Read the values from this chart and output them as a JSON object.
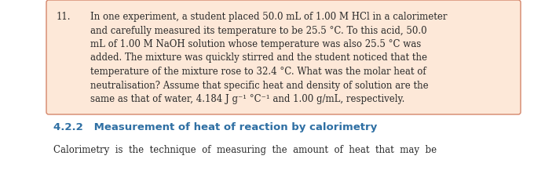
{
  "bg_color": "#ffffff",
  "box_bg_color": "#fde8d8",
  "box_border_color": "#d4856a",
  "heading_color": "#2e6fa3",
  "body_color": "#2a2a2a",
  "number_color": "#2a2a2a",
  "item_number": "11.",
  "lines": [
    "In one experiment, a student placed 50.0 mL of 1.00 M HCl in a calorimeter",
    "and carefully measured its temperature to be 25.5 °C. To this acid, 50.0",
    "mL of 1.00 M NaOH solution whose temperature was also 25.5 °C was",
    "added. The mixture was quickly stirred and the student noticed that the",
    "temperature of the mixture rose to 32.4 °C. What was the molar heat of",
    "neutralisation? Assume that specific heat and density of solution are the",
    "same as that of water, 4.184 J g⁻¹ °C⁻¹ and 1.00 g/mL, respectively."
  ],
  "section_heading": "4.2.2   Measurement of heat of reaction by calorimetry",
  "calorimetry_line": "Calorimetry  is  the  technique  of  measuring  the  amount  of  heat  that  may  be",
  "font_size_body": 8.5,
  "font_size_heading": 9.5,
  "watermark_alpha": 0.08
}
